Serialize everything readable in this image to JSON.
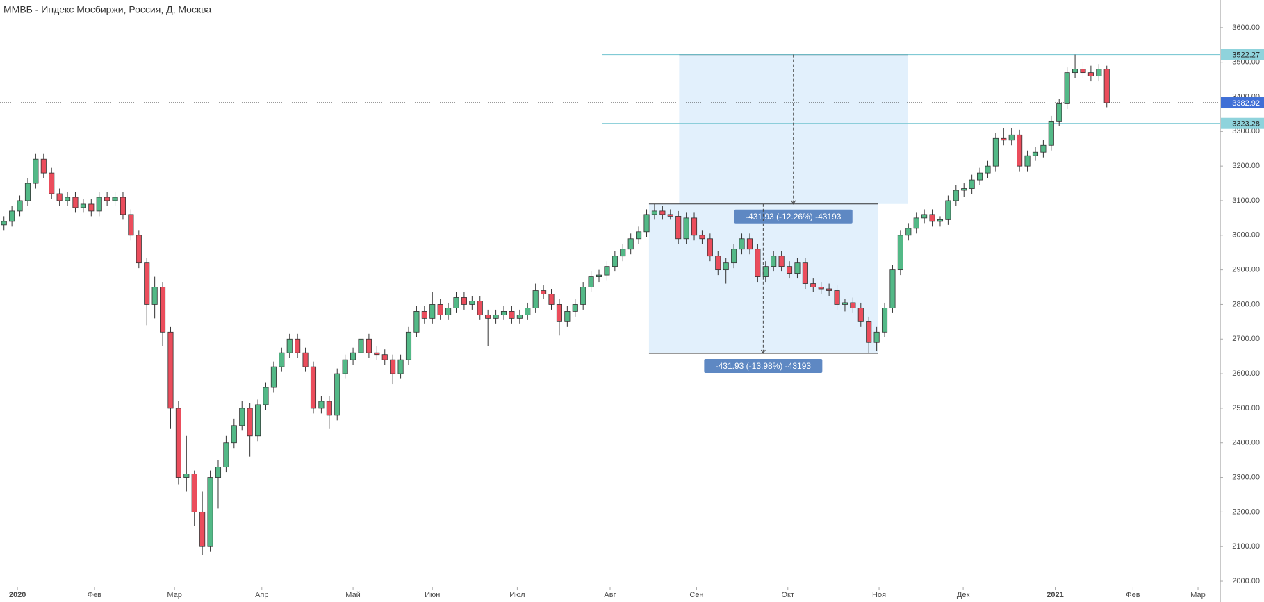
{
  "chart_data": {
    "type": "candlestick",
    "title": "ММВБ - Индекс Мосбиржи, Россия, Д, Москва",
    "up_color": "#53b987",
    "down_color": "#eb4d5c",
    "candles": [
      [
        3030,
        3055,
        3015,
        3040
      ],
      [
        3040,
        3085,
        3025,
        3070
      ],
      [
        3070,
        3115,
        3055,
        3100
      ],
      [
        3100,
        3165,
        3085,
        3150
      ],
      [
        3150,
        3235,
        3135,
        3220
      ],
      [
        3220,
        3235,
        3165,
        3180
      ],
      [
        3180,
        3195,
        3105,
        3120
      ],
      [
        3120,
        3135,
        3085,
        3100
      ],
      [
        3100,
        3125,
        3085,
        3110
      ],
      [
        3110,
        3125,
        3065,
        3080
      ],
      [
        3080,
        3105,
        3065,
        3090
      ],
      [
        3090,
        3105,
        3055,
        3070
      ],
      [
        3070,
        3125,
        3055,
        3110
      ],
      [
        3110,
        3125,
        3085,
        3100
      ],
      [
        3100,
        3125,
        3085,
        3110
      ],
      [
        3110,
        3125,
        3045,
        3060
      ],
      [
        3060,
        3075,
        2985,
        3000
      ],
      [
        3000,
        3015,
        2905,
        2920
      ],
      [
        2920,
        2935,
        2740,
        2800
      ],
      [
        2800,
        2880,
        2760,
        2850
      ],
      [
        2850,
        2865,
        2680,
        2720
      ],
      [
        2720,
        2735,
        2440,
        2500
      ],
      [
        2500,
        2520,
        2280,
        2300
      ],
      [
        2300,
        2420,
        2260,
        2310
      ],
      [
        2310,
        2320,
        2160,
        2200
      ],
      [
        2200,
        2260,
        2075,
        2100
      ],
      [
        2100,
        2320,
        2085,
        2300
      ],
      [
        2300,
        2350,
        2210,
        2330
      ],
      [
        2330,
        2420,
        2315,
        2400
      ],
      [
        2400,
        2470,
        2385,
        2450
      ],
      [
        2450,
        2520,
        2435,
        2500
      ],
      [
        2500,
        2515,
        2360,
        2420
      ],
      [
        2420,
        2525,
        2405,
        2510
      ],
      [
        2510,
        2575,
        2495,
        2560
      ],
      [
        2560,
        2635,
        2545,
        2620
      ],
      [
        2620,
        2675,
        2605,
        2660
      ],
      [
        2660,
        2715,
        2645,
        2700
      ],
      [
        2700,
        2715,
        2645,
        2660
      ],
      [
        2660,
        2675,
        2605,
        2620
      ],
      [
        2620,
        2635,
        2485,
        2500
      ],
      [
        2500,
        2535,
        2485,
        2520
      ],
      [
        2520,
        2535,
        2440,
        2480
      ],
      [
        2480,
        2615,
        2465,
        2600
      ],
      [
        2600,
        2655,
        2585,
        2640
      ],
      [
        2640,
        2675,
        2625,
        2660
      ],
      [
        2660,
        2715,
        2645,
        2700
      ],
      [
        2700,
        2715,
        2645,
        2660
      ],
      [
        2660,
        2680,
        2640,
        2655
      ],
      [
        2655,
        2670,
        2625,
        2640
      ],
      [
        2640,
        2655,
        2570,
        2600
      ],
      [
        2600,
        2655,
        2585,
        2640
      ],
      [
        2640,
        2735,
        2625,
        2720
      ],
      [
        2720,
        2795,
        2705,
        2780
      ],
      [
        2780,
        2795,
        2745,
        2760
      ],
      [
        2760,
        2835,
        2745,
        2800
      ],
      [
        2800,
        2815,
        2755,
        2770
      ],
      [
        2770,
        2805,
        2755,
        2790
      ],
      [
        2790,
        2835,
        2775,
        2820
      ],
      [
        2820,
        2835,
        2785,
        2800
      ],
      [
        2800,
        2825,
        2785,
        2810
      ],
      [
        2810,
        2825,
        2755,
        2770
      ],
      [
        2770,
        2785,
        2680,
        2760
      ],
      [
        2760,
        2785,
        2745,
        2770
      ],
      [
        2770,
        2795,
        2755,
        2780
      ],
      [
        2780,
        2795,
        2745,
        2760
      ],
      [
        2760,
        2785,
        2745,
        2770
      ],
      [
        2770,
        2805,
        2755,
        2790
      ],
      [
        2790,
        2860,
        2775,
        2840
      ],
      [
        2840,
        2855,
        2815,
        2830
      ],
      [
        2830,
        2845,
        2785,
        2800
      ],
      [
        2800,
        2815,
        2710,
        2750
      ],
      [
        2750,
        2795,
        2735,
        2780
      ],
      [
        2780,
        2815,
        2765,
        2800
      ],
      [
        2800,
        2865,
        2785,
        2850
      ],
      [
        2850,
        2895,
        2835,
        2880
      ],
      [
        2880,
        2900,
        2865,
        2885
      ],
      [
        2885,
        2925,
        2870,
        2910
      ],
      [
        2910,
        2955,
        2895,
        2940
      ],
      [
        2940,
        2975,
        2925,
        2960
      ],
      [
        2960,
        3005,
        2945,
        2990
      ],
      [
        2990,
        3025,
        2975,
        3010
      ],
      [
        3010,
        3075,
        2995,
        3060
      ],
      [
        3060,
        3090,
        3045,
        3070
      ],
      [
        3070,
        3085,
        3045,
        3060
      ],
      [
        3060,
        3075,
        3045,
        3055
      ],
      [
        3055,
        3070,
        2975,
        2990
      ],
      [
        2990,
        3065,
        2975,
        3050
      ],
      [
        3050,
        3065,
        2985,
        3000
      ],
      [
        3000,
        3015,
        2975,
        2990
      ],
      [
        2990,
        3005,
        2925,
        2940
      ],
      [
        2940,
        2955,
        2885,
        2900
      ],
      [
        2900,
        2935,
        2860,
        2920
      ],
      [
        2920,
        2975,
        2905,
        2960
      ],
      [
        2960,
        3005,
        2945,
        2990
      ],
      [
        2990,
        3005,
        2945,
        2960
      ],
      [
        2960,
        2975,
        2865,
        2880
      ],
      [
        2880,
        2925,
        2865,
        2910
      ],
      [
        2910,
        2955,
        2895,
        2940
      ],
      [
        2940,
        2955,
        2895,
        2910
      ],
      [
        2910,
        2925,
        2875,
        2890
      ],
      [
        2890,
        2935,
        2875,
        2920
      ],
      [
        2920,
        2935,
        2845,
        2860
      ],
      [
        2860,
        2875,
        2835,
        2850
      ],
      [
        2850,
        2865,
        2830,
        2845
      ],
      [
        2845,
        2860,
        2825,
        2840
      ],
      [
        2840,
        2855,
        2785,
        2800
      ],
      [
        2800,
        2815,
        2780,
        2805
      ],
      [
        2805,
        2820,
        2775,
        2790
      ],
      [
        2790,
        2805,
        2735,
        2750
      ],
      [
        2750,
        2765,
        2660,
        2690
      ],
      [
        2690,
        2735,
        2665,
        2720
      ],
      [
        2720,
        2805,
        2705,
        2790
      ],
      [
        2790,
        2915,
        2775,
        2900
      ],
      [
        2900,
        3015,
        2885,
        3000
      ],
      [
        3000,
        3035,
        2985,
        3020
      ],
      [
        3020,
        3065,
        3005,
        3050
      ],
      [
        3050,
        3075,
        3035,
        3060
      ],
      [
        3060,
        3075,
        3025,
        3040
      ],
      [
        3040,
        3055,
        3025,
        3045
      ],
      [
        3045,
        3115,
        3030,
        3100
      ],
      [
        3100,
        3145,
        3085,
        3130
      ],
      [
        3130,
        3150,
        3110,
        3135
      ],
      [
        3135,
        3175,
        3120,
        3160
      ],
      [
        3160,
        3195,
        3145,
        3180
      ],
      [
        3180,
        3215,
        3165,
        3200
      ],
      [
        3200,
        3295,
        3185,
        3280
      ],
      [
        3280,
        3310,
        3260,
        3275
      ],
      [
        3275,
        3310,
        3260,
        3290
      ],
      [
        3290,
        3305,
        3185,
        3200
      ],
      [
        3200,
        3245,
        3185,
        3230
      ],
      [
        3230,
        3255,
        3215,
        3240
      ],
      [
        3240,
        3275,
        3225,
        3260
      ],
      [
        3260,
        3345,
        3245,
        3330
      ],
      [
        3330,
        3395,
        3315,
        3380
      ],
      [
        3380,
        3485,
        3365,
        3470
      ],
      [
        3470,
        3522.27,
        3455,
        3480
      ],
      [
        3480,
        3500,
        3455,
        3470
      ],
      [
        3470,
        3490,
        3445,
        3460
      ],
      [
        3460,
        3495,
        3445,
        3480
      ],
      [
        3480,
        3490,
        3370,
        3382.92
      ]
    ],
    "xlim": [
      0,
      153.8
    ],
    "xticks": [
      {
        "value": 2.2,
        "label": "2020"
      },
      {
        "value": 11.9,
        "label": "Фев"
      },
      {
        "value": 22.0,
        "label": "Мар"
      },
      {
        "value": 33.0,
        "label": "Апр"
      },
      {
        "value": 44.5,
        "label": "Май"
      },
      {
        "value": 54.5,
        "label": "Июн"
      },
      {
        "value": 65.2,
        "label": "Июл"
      },
      {
        "value": 76.9,
        "label": "Авг"
      },
      {
        "value": 87.8,
        "label": "Сен"
      },
      {
        "value": 99.3,
        "label": "Окт"
      },
      {
        "value": 110.8,
        "label": "Ноя"
      },
      {
        "value": 121.4,
        "label": "Дек"
      },
      {
        "value": 133.0,
        "label": "2021"
      },
      {
        "value": 142.8,
        "label": "Фев"
      },
      {
        "value": 151.0,
        "label": "Мар"
      }
    ],
    "ylim": [
      1984,
      3680
    ],
    "yticks": [
      {
        "value": 2000,
        "label": "2000.00"
      },
      {
        "value": 2100,
        "label": "2100.00"
      },
      {
        "value": 2200,
        "label": "2200.00"
      },
      {
        "value": 2300,
        "label": "2300.00"
      },
      {
        "value": 2400,
        "label": "2400.00"
      },
      {
        "value": 2500,
        "label": "2500.00"
      },
      {
        "value": 2600,
        "label": "2600.00"
      },
      {
        "value": 2700,
        "label": "2700.00"
      },
      {
        "value": 2800,
        "label": "2800.00"
      },
      {
        "value": 2900,
        "label": "2900.00"
      },
      {
        "value": 3000,
        "label": "3000.00"
      },
      {
        "value": 3100,
        "label": "3100.00"
      },
      {
        "value": 3200,
        "label": "3200.00"
      },
      {
        "value": 3300,
        "label": "3300.00"
      },
      {
        "value": 3400,
        "label": "3400.00"
      },
      {
        "value": 3500,
        "label": "3500.00"
      },
      {
        "value": 3600,
        "label": "3600.00"
      }
    ],
    "hlines": {
      "x_from": 75.9,
      "levels": [
        3522.27,
        3323.28
      ]
    },
    "measures": [
      {
        "label": "-431.93 (-12.26%) -43193",
        "from": 3522.27,
        "to": 3090.34,
        "x_start": 85.6,
        "x_end": 114.4,
        "arrow_x": 100.0
      },
      {
        "label": "-431.93 (-13.98%) -43193",
        "from": 3090.34,
        "to": 2658.41,
        "x_start": 81.8,
        "x_end": 110.7,
        "arrow_x": 96.2
      }
    ]
  }
}
